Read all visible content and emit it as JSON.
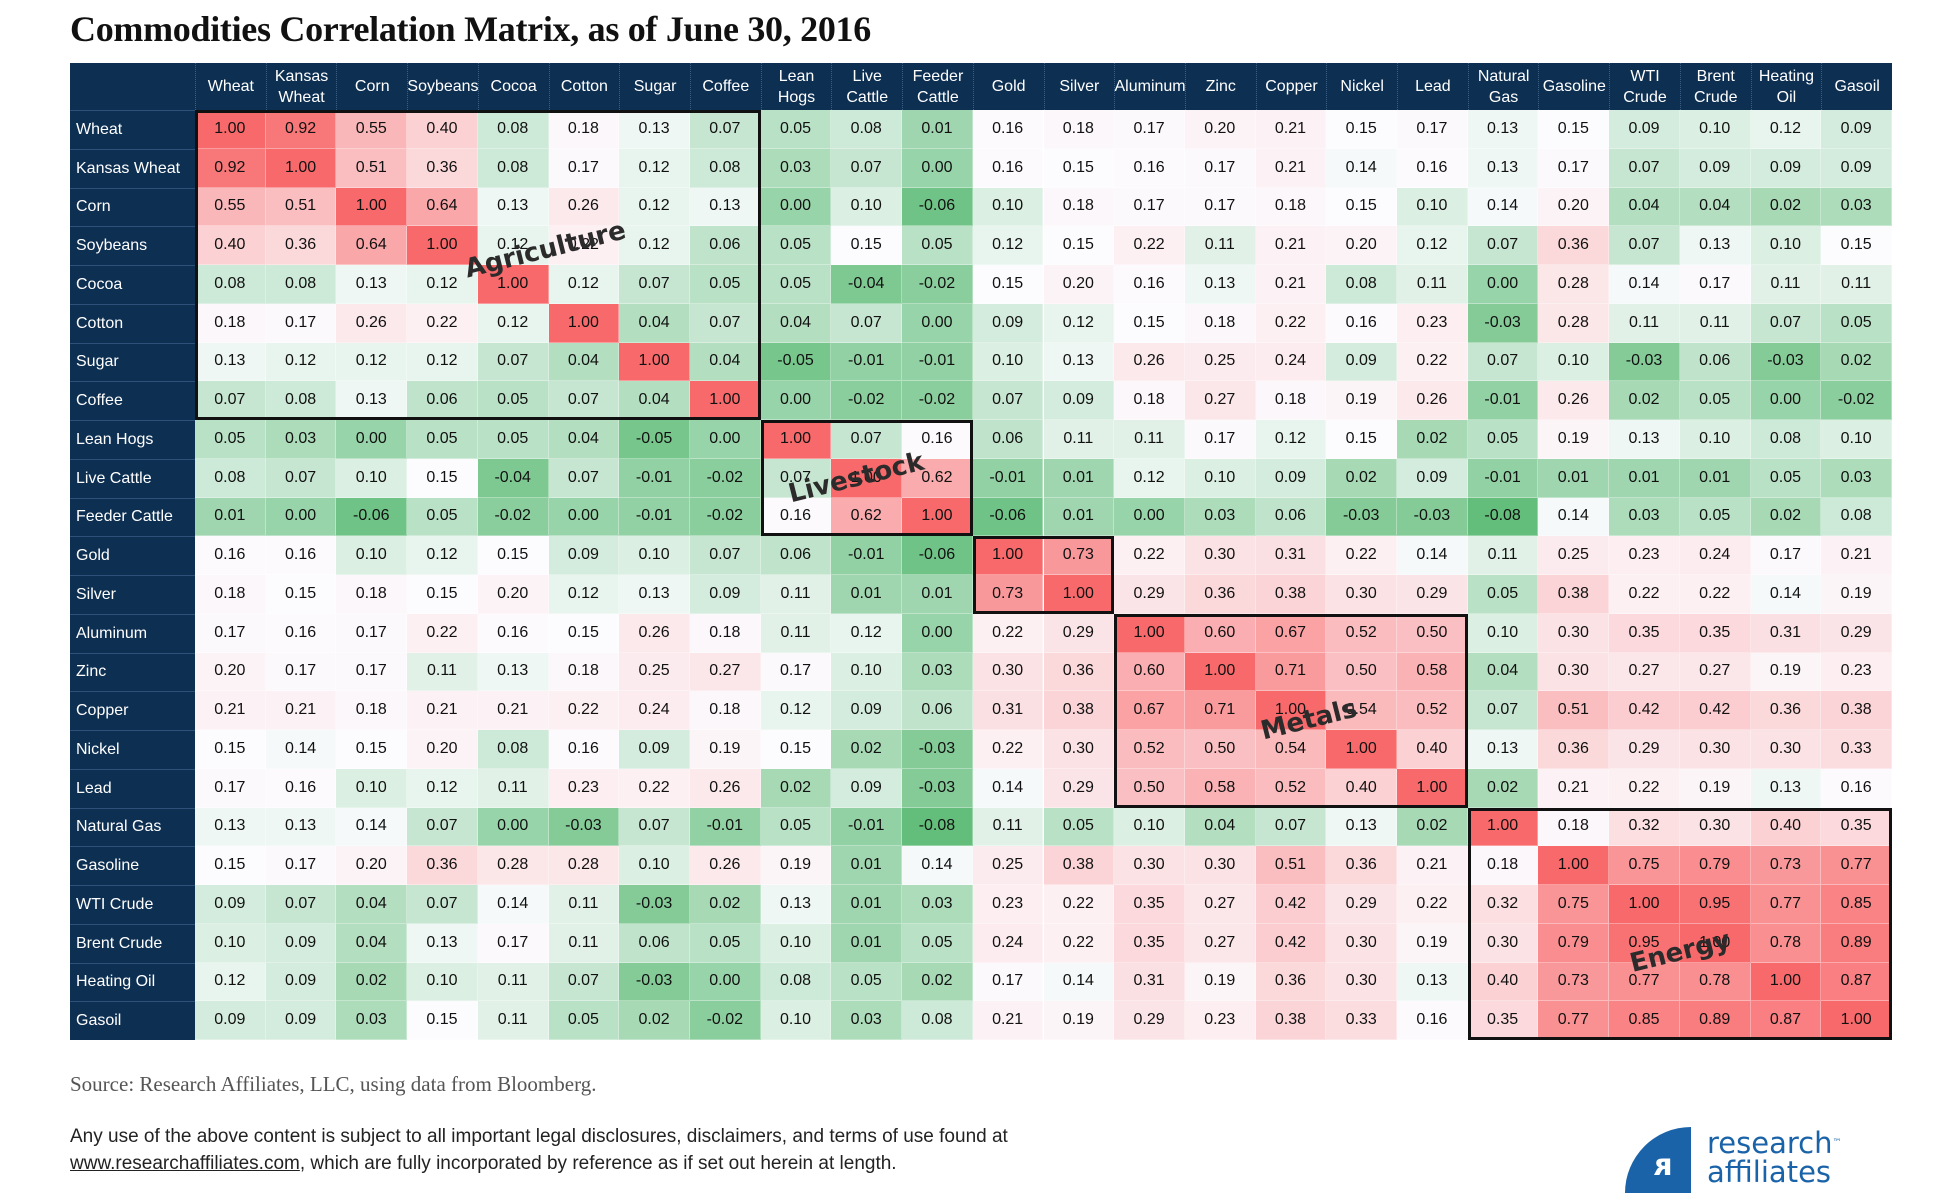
{
  "title": "Commodities Correlation Matrix, as of June 30, 2016",
  "source": "Source: Research Affiliates, LLC, using data from Bloomberg.",
  "disclaimer": {
    "line1": "Any use of the above content is subject to all important legal disclosures, disclaimers, and terms of use found at",
    "link": "www.researchaffiliates.com",
    "line2": ", which are fully incorporated by reference as if set out herein at length."
  },
  "logo": {
    "line1": "research",
    "line2": "affiliates",
    "tm": "™",
    "icon": "ra-logo-icon"
  },
  "colors": {
    "header": "#0d2f52",
    "high": "#f8696b",
    "mid": "#fcfcff",
    "low": "#63be7b"
  },
  "chart_data": {
    "type": "heatmap",
    "title": "Commodities Correlation Matrix, as of June 30, 2016",
    "col_labels": [
      "Wheat",
      "Kansas\nWheat",
      "Corn",
      "Soybeans",
      "Cocoa",
      "Cotton",
      "Sugar",
      "Coffee",
      "Lean\nHogs",
      "Live\nCattle",
      "Feeder\nCattle",
      "Gold",
      "Silver",
      "Aluminum",
      "Zinc",
      "Copper",
      "Nickel",
      "Lead",
      "Natural\nGas",
      "Gasoline",
      "WTI\nCrude",
      "Brent\nCrude",
      "Heating\nOil",
      "Gasoil"
    ],
    "row_labels": [
      "Wheat",
      "Kansas Wheat",
      "Corn",
      "Soybeans",
      "Cocoa",
      "Cotton",
      "Sugar",
      "Coffee",
      "Lean Hogs",
      "Live Cattle",
      "Feeder Cattle",
      "Gold",
      "Silver",
      "Aluminum",
      "Zinc",
      "Copper",
      "Nickel",
      "Lead",
      "Natural Gas",
      "Gasoline",
      "WTI Crude",
      "Brent Crude",
      "Heating Oil",
      "Gasoil"
    ],
    "values": [
      [
        1.0,
        0.92,
        0.55,
        0.4,
        0.08,
        0.18,
        0.13,
        0.07,
        0.05,
        0.08,
        0.01,
        0.16,
        0.18,
        0.17,
        0.2,
        0.21,
        0.15,
        0.17,
        0.13,
        0.15,
        0.09,
        0.1,
        0.12,
        0.09
      ],
      [
        0.92,
        1.0,
        0.51,
        0.36,
        0.08,
        0.17,
        0.12,
        0.08,
        0.03,
        0.07,
        0.0,
        0.16,
        0.15,
        0.16,
        0.17,
        0.21,
        0.14,
        0.16,
        0.13,
        0.17,
        0.07,
        0.09,
        0.09,
        0.09
      ],
      [
        0.55,
        0.51,
        1.0,
        0.64,
        0.13,
        0.26,
        0.12,
        0.13,
        0.0,
        0.1,
        -0.06,
        0.1,
        0.18,
        0.17,
        0.17,
        0.18,
        0.15,
        0.1,
        0.14,
        0.2,
        0.04,
        0.04,
        0.02,
        0.03
      ],
      [
        0.4,
        0.36,
        0.64,
        1.0,
        0.12,
        0.22,
        0.12,
        0.06,
        0.05,
        0.15,
        0.05,
        0.12,
        0.15,
        0.22,
        0.11,
        0.21,
        0.2,
        0.12,
        0.07,
        0.36,
        0.07,
        0.13,
        0.1,
        0.15
      ],
      [
        0.08,
        0.08,
        0.13,
        0.12,
        1.0,
        0.12,
        0.07,
        0.05,
        0.05,
        -0.04,
        -0.02,
        0.15,
        0.2,
        0.16,
        0.13,
        0.21,
        0.08,
        0.11,
        0.0,
        0.28,
        0.14,
        0.17,
        0.11,
        0.11
      ],
      [
        0.18,
        0.17,
        0.26,
        0.22,
        0.12,
        1.0,
        0.04,
        0.07,
        0.04,
        0.07,
        0.0,
        0.09,
        0.12,
        0.15,
        0.18,
        0.22,
        0.16,
        0.23,
        -0.03,
        0.28,
        0.11,
        0.11,
        0.07,
        0.05
      ],
      [
        0.13,
        0.12,
        0.12,
        0.12,
        0.07,
        0.04,
        1.0,
        0.04,
        -0.05,
        -0.01,
        -0.01,
        0.1,
        0.13,
        0.26,
        0.25,
        0.24,
        0.09,
        0.22,
        0.07,
        0.1,
        -0.03,
        0.06,
        -0.03,
        0.02
      ],
      [
        0.07,
        0.08,
        0.13,
        0.06,
        0.05,
        0.07,
        0.04,
        1.0,
        0.0,
        -0.02,
        -0.02,
        0.07,
        0.09,
        0.18,
        0.27,
        0.18,
        0.19,
        0.26,
        -0.01,
        0.26,
        0.02,
        0.05,
        0.0,
        -0.02
      ],
      [
        0.05,
        0.03,
        0.0,
        0.05,
        0.05,
        0.04,
        -0.05,
        0.0,
        1.0,
        0.07,
        0.16,
        0.06,
        0.11,
        0.11,
        0.17,
        0.12,
        0.15,
        0.02,
        0.05,
        0.19,
        0.13,
        0.1,
        0.08,
        0.1
      ],
      [
        0.08,
        0.07,
        0.1,
        0.15,
        -0.04,
        0.07,
        -0.01,
        -0.02,
        0.07,
        1.0,
        0.62,
        -0.01,
        0.01,
        0.12,
        0.1,
        0.09,
        0.02,
        0.09,
        -0.01,
        0.01,
        0.01,
        0.01,
        0.05,
        0.03
      ],
      [
        0.01,
        0.0,
        -0.06,
        0.05,
        -0.02,
        0.0,
        -0.01,
        -0.02,
        0.16,
        0.62,
        1.0,
        -0.06,
        0.01,
        0.0,
        0.03,
        0.06,
        -0.03,
        -0.03,
        -0.08,
        0.14,
        0.03,
        0.05,
        0.02,
        0.08
      ],
      [
        0.16,
        0.16,
        0.1,
        0.12,
        0.15,
        0.09,
        0.1,
        0.07,
        0.06,
        -0.01,
        -0.06,
        1.0,
        0.73,
        0.22,
        0.3,
        0.31,
        0.22,
        0.14,
        0.11,
        0.25,
        0.23,
        0.24,
        0.17,
        0.21
      ],
      [
        0.18,
        0.15,
        0.18,
        0.15,
        0.2,
        0.12,
        0.13,
        0.09,
        0.11,
        0.01,
        0.01,
        0.73,
        1.0,
        0.29,
        0.36,
        0.38,
        0.3,
        0.29,
        0.05,
        0.38,
        0.22,
        0.22,
        0.14,
        0.19
      ],
      [
        0.17,
        0.16,
        0.17,
        0.22,
        0.16,
        0.15,
        0.26,
        0.18,
        0.11,
        0.12,
        0.0,
        0.22,
        0.29,
        1.0,
        0.6,
        0.67,
        0.52,
        0.5,
        0.1,
        0.3,
        0.35,
        0.35,
        0.31,
        0.29
      ],
      [
        0.2,
        0.17,
        0.17,
        0.11,
        0.13,
        0.18,
        0.25,
        0.27,
        0.17,
        0.1,
        0.03,
        0.3,
        0.36,
        0.6,
        1.0,
        0.71,
        0.5,
        0.58,
        0.04,
        0.3,
        0.27,
        0.27,
        0.19,
        0.23
      ],
      [
        0.21,
        0.21,
        0.18,
        0.21,
        0.21,
        0.22,
        0.24,
        0.18,
        0.12,
        0.09,
        0.06,
        0.31,
        0.38,
        0.67,
        0.71,
        1.0,
        0.54,
        0.52,
        0.07,
        0.51,
        0.42,
        0.42,
        0.36,
        0.38
      ],
      [
        0.15,
        0.14,
        0.15,
        0.2,
        0.08,
        0.16,
        0.09,
        0.19,
        0.15,
        0.02,
        -0.03,
        0.22,
        0.3,
        0.52,
        0.5,
        0.54,
        1.0,
        0.4,
        0.13,
        0.36,
        0.29,
        0.3,
        0.3,
        0.33
      ],
      [
        0.17,
        0.16,
        0.1,
        0.12,
        0.11,
        0.23,
        0.22,
        0.26,
        0.02,
        0.09,
        -0.03,
        0.14,
        0.29,
        0.5,
        0.58,
        0.52,
        0.4,
        1.0,
        0.02,
        0.21,
        0.22,
        0.19,
        0.13,
        0.16
      ],
      [
        0.13,
        0.13,
        0.14,
        0.07,
        0.0,
        -0.03,
        0.07,
        -0.01,
        0.05,
        -0.01,
        -0.08,
        0.11,
        0.05,
        0.1,
        0.04,
        0.07,
        0.13,
        0.02,
        1.0,
        0.18,
        0.32,
        0.3,
        0.4,
        0.35
      ],
      [
        0.15,
        0.17,
        0.2,
        0.36,
        0.28,
        0.28,
        0.1,
        0.26,
        0.19,
        0.01,
        0.14,
        0.25,
        0.38,
        0.3,
        0.3,
        0.51,
        0.36,
        0.21,
        0.18,
        1.0,
        0.75,
        0.79,
        0.73,
        0.77
      ],
      [
        0.09,
        0.07,
        0.04,
        0.07,
        0.14,
        0.11,
        -0.03,
        0.02,
        0.13,
        0.01,
        0.03,
        0.23,
        0.22,
        0.35,
        0.27,
        0.42,
        0.29,
        0.22,
        0.32,
        0.75,
        1.0,
        0.95,
        0.77,
        0.85
      ],
      [
        0.1,
        0.09,
        0.04,
        0.13,
        0.17,
        0.11,
        0.06,
        0.05,
        0.1,
        0.01,
        0.05,
        0.24,
        0.22,
        0.35,
        0.27,
        0.42,
        0.3,
        0.19,
        0.3,
        0.79,
        0.95,
        1.0,
        0.78,
        0.89
      ],
      [
        0.12,
        0.09,
        0.02,
        0.1,
        0.11,
        0.07,
        -0.03,
        0.0,
        0.08,
        0.05,
        0.02,
        0.17,
        0.14,
        0.31,
        0.19,
        0.36,
        0.3,
        0.13,
        0.4,
        0.73,
        0.77,
        0.78,
        1.0,
        0.87
      ],
      [
        0.09,
        0.09,
        0.03,
        0.15,
        0.11,
        0.05,
        0.02,
        -0.02,
        0.1,
        0.03,
        0.08,
        0.21,
        0.19,
        0.29,
        0.23,
        0.38,
        0.33,
        0.16,
        0.35,
        0.77,
        0.85,
        0.89,
        0.87,
        1.0
      ]
    ],
    "color_scale": {
      "min": -0.08,
      "mid": 0.15,
      "max": 1.0,
      "min_color": "#63be7b",
      "mid_color": "#fcfcff",
      "max_color": "#f8696b"
    },
    "groups": [
      {
        "name": "Agriculture",
        "start": 0,
        "end": 7
      },
      {
        "name": "Livestock",
        "start": 8,
        "end": 10
      },
      {
        "name": "",
        "start": 11,
        "end": 12
      },
      {
        "name": "Metals",
        "start": 13,
        "end": 17
      },
      {
        "name": "Energy",
        "start": 18,
        "end": 23
      }
    ]
  }
}
